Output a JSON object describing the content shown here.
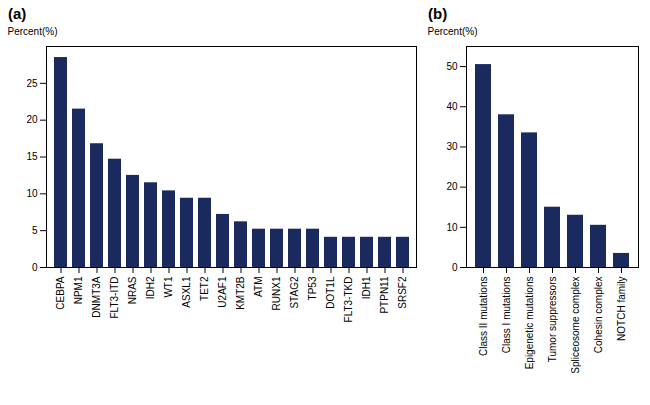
{
  "chart_data": [
    {
      "type": "bar",
      "title": "(a)",
      "categories": [
        "CEBPA",
        "NPM1",
        "DNMT3A",
        "FLT3-ITD",
        "NRAS",
        "IDH2",
        "WT1",
        "ASXL1",
        "TET2",
        "U2AF1",
        "KMT2B",
        "ATM",
        "RUNX1",
        "STAG2",
        "TP53",
        "DOT1L",
        "FLT3-TKD",
        "IDH1",
        "PTPN11",
        "SRSF2"
      ],
      "values": [
        28.5,
        21.5,
        16.8,
        14.7,
        12.5,
        11.5,
        10.4,
        9.4,
        9.4,
        7.2,
        6.2,
        5.2,
        5.2,
        5.2,
        5.2,
        4.1,
        4.1,
        4.1,
        4.1,
        4.1
      ],
      "ylabel": "Percent(%)",
      "ylim": [
        0,
        30
      ],
      "yticks": [
        0,
        5,
        10,
        15,
        20,
        25
      ],
      "color": "#1a2a5e"
    },
    {
      "type": "bar",
      "title": "(b)",
      "categories": [
        "Class II mutations",
        "Class I mutations",
        "Epigenetic mutations",
        "Tumor suppressors",
        "Spliceosome complex",
        "Cohesin complex",
        "NOTCH family"
      ],
      "values": [
        50.5,
        38.0,
        33.5,
        15.0,
        13.0,
        10.5,
        3.5
      ],
      "ylabel": "Percent(%)",
      "ylim": [
        0,
        55
      ],
      "yticks": [
        0,
        10,
        20,
        30,
        40,
        50
      ],
      "color": "#1a2a5e"
    }
  ]
}
